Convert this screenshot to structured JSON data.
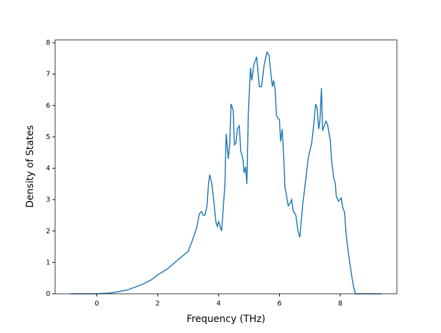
{
  "chart_data": {
    "type": "line",
    "xlabel": "Frequency (THz)",
    "ylabel": "Density of States",
    "xlim": [
      -1.37,
      9.86
    ],
    "ylim": [
      0,
      8.09
    ],
    "xticks": [
      0,
      2,
      4,
      6,
      8
    ],
    "yticks": [
      0,
      1,
      2,
      3,
      4,
      5,
      6,
      7,
      8
    ],
    "series": [
      {
        "color": "#1f77b4",
        "x": [
          -0.86,
          -0.4,
          0,
          0.5,
          1,
          1.5,
          1.8,
          2,
          2.3,
          2.69,
          3.0,
          3.14,
          3.28,
          3.37,
          3.44,
          3.5,
          3.55,
          3.62,
          3.67,
          3.71,
          3.78,
          3.85,
          3.91,
          3.96,
          4.0,
          4.1,
          4.21,
          4.25,
          4.32,
          4.37,
          4.41,
          4.48,
          4.52,
          4.57,
          4.62,
          4.68,
          4.73,
          4.8,
          4.84,
          4.89,
          4.93,
          4.98,
          5.05,
          5.09,
          5.16,
          5.25,
          5.34,
          5.41,
          5.5,
          5.59,
          5.66,
          5.72,
          5.77,
          5.81,
          5.86,
          5.9,
          5.95,
          6.0,
          6.04,
          6.09,
          6.13,
          6.18,
          6.22,
          6.29,
          6.36,
          6.4,
          6.45,
          6.54,
          6.61,
          6.67,
          6.76,
          6.86,
          6.95,
          7.06,
          7.13,
          7.19,
          7.24,
          7.29,
          7.33,
          7.38,
          7.42,
          7.49,
          7.53,
          7.58,
          7.67,
          7.71,
          7.78,
          7.83,
          7.87,
          7.94,
          8.03,
          8.08,
          8.14,
          8.19,
          8.28,
          8.37,
          8.44,
          8.5,
          8.8,
          9.34
        ],
        "values": [
          0,
          0,
          0,
          0.03,
          0.12,
          0.3,
          0.45,
          0.6,
          0.78,
          1.1,
          1.35,
          1.7,
          2.1,
          2.55,
          2.62,
          2.5,
          2.5,
          2.8,
          3.5,
          3.8,
          3.5,
          2.9,
          2.3,
          2.15,
          2.3,
          2.0,
          3.5,
          5.1,
          4.3,
          4.8,
          6.05,
          5.85,
          4.75,
          4.8,
          5.25,
          5.35,
          4.55,
          4.3,
          3.85,
          4.05,
          3.5,
          5.8,
          7.2,
          6.8,
          7.3,
          7.55,
          6.6,
          6.6,
          7.3,
          7.7,
          7.6,
          7.0,
          6.6,
          6.8,
          6.5,
          5.7,
          5.6,
          5.55,
          4.85,
          5.25,
          4.6,
          3.4,
          3.2,
          2.8,
          2.9,
          3.0,
          2.65,
          2.5,
          2.0,
          1.8,
          2.8,
          3.6,
          4.35,
          4.8,
          5.4,
          6.05,
          5.9,
          5.25,
          5.5,
          6.55,
          5.2,
          5.4,
          5.5,
          5.4,
          4.9,
          4.3,
          3.7,
          3.55,
          3.1,
          2.95,
          3.05,
          2.75,
          2.6,
          1.9,
          1.2,
          0.6,
          0.2,
          0,
          0,
          0
        ]
      }
    ]
  }
}
